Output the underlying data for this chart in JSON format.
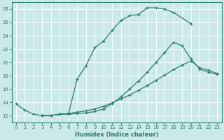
{
  "xlabel": "Humidex (Indice chaleur)",
  "ylabel": "",
  "xlim": [
    -0.5,
    23.5
  ],
  "ylim": [
    11,
    29
  ],
  "yticks": [
    12,
    14,
    16,
    18,
    20,
    22,
    24,
    26,
    28
  ],
  "xticks": [
    0,
    1,
    2,
    3,
    4,
    5,
    6,
    7,
    8,
    9,
    10,
    11,
    12,
    13,
    14,
    15,
    16,
    17,
    18,
    19,
    20,
    21,
    22,
    23
  ],
  "bg_color": "#cce9e9",
  "line_color": "#2e7d6e",
  "grid_color": "#ffffff",
  "curve1_x": [
    0,
    1,
    2,
    3,
    4,
    5,
    6,
    7,
    8,
    9,
    10,
    11,
    12,
    13,
    14,
    15,
    16,
    17,
    18,
    20
  ],
  "curve1_y": [
    13.8,
    12.8,
    12.2,
    12.0,
    12.0,
    12.2,
    12.3,
    17.5,
    19.5,
    22.2,
    23.2,
    24.8,
    26.3,
    27.0,
    27.2,
    28.2,
    28.2,
    28.0,
    27.5,
    25.8
  ],
  "curve2_x": [
    3,
    4,
    5,
    6,
    7,
    8,
    9,
    10,
    11,
    12,
    13,
    14,
    15,
    16,
    17,
    18,
    19,
    20,
    21,
    22,
    23
  ],
  "curve2_y": [
    12.0,
    12.0,
    12.2,
    12.2,
    12.3,
    12.4,
    12.6,
    13.0,
    13.8,
    14.8,
    16.0,
    17.2,
    18.5,
    20.0,
    21.5,
    23.0,
    22.5,
    20.5,
    19.0,
    18.5,
    18.2
  ],
  "curve3_x": [
    3,
    4,
    5,
    6,
    7,
    8,
    9,
    10,
    11,
    12,
    13,
    14,
    15,
    16,
    17,
    18,
    19,
    20,
    21,
    22,
    23
  ],
  "curve3_y": [
    12.0,
    12.0,
    12.2,
    12.3,
    12.5,
    12.7,
    13.0,
    13.4,
    13.9,
    14.5,
    15.1,
    15.8,
    16.5,
    17.3,
    18.1,
    18.9,
    19.6,
    20.2,
    19.2,
    18.8,
    18.3
  ]
}
